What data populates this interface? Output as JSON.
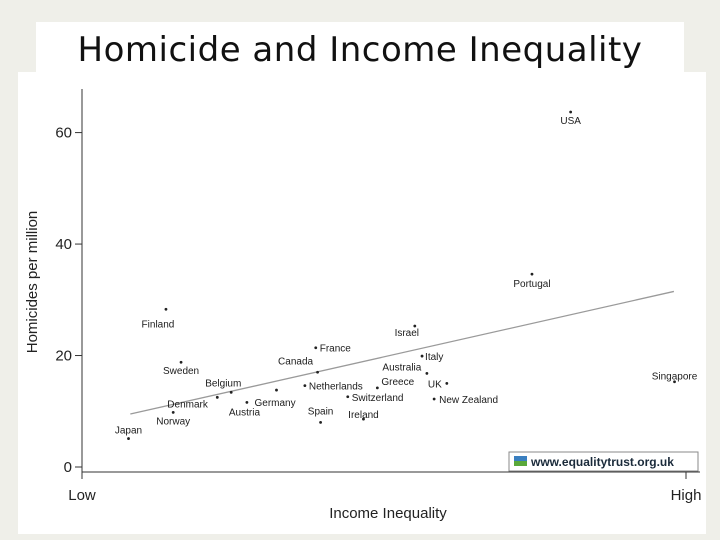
{
  "title": "Homicide and Income Inequality",
  "chart_data": {
    "type": "scatter",
    "xlabel": "Income Inequality",
    "ylabel": "Homicides per million",
    "x_tick_labels": [
      "Low",
      "High"
    ],
    "xlim": [
      0,
      100
    ],
    "ylim": [
      0,
      68
    ],
    "y_ticks": [
      0,
      20,
      40,
      60
    ],
    "grid": false,
    "points": [
      {
        "label": "USA",
        "x": 80.9,
        "y": 63.7
      },
      {
        "label": "Portugal",
        "x": 74.5,
        "y": 34.6
      },
      {
        "label": "Finland",
        "x": 13.9,
        "y": 28.3
      },
      {
        "label": "Israel",
        "x": 55.1,
        "y": 25.3
      },
      {
        "label": "France",
        "x": 38.7,
        "y": 21.4
      },
      {
        "label": "Italy",
        "x": 56.3,
        "y": 19.9
      },
      {
        "label": "Sweden",
        "x": 16.4,
        "y": 18.8
      },
      {
        "label": "Canada",
        "x": 39.0,
        "y": 17.0
      },
      {
        "label": "Australia",
        "x": 57.1,
        "y": 16.8
      },
      {
        "label": "Singapore",
        "x": 98.1,
        "y": 15.3
      },
      {
        "label": "UK",
        "x": 60.4,
        "y": 15.0
      },
      {
        "label": "Netherlands",
        "x": 36.9,
        "y": 14.6
      },
      {
        "label": "Greece",
        "x": 48.9,
        "y": 14.2
      },
      {
        "label": "Belgium",
        "x": 24.7,
        "y": 13.4
      },
      {
        "label": "Germany",
        "x": 32.2,
        "y": 13.8
      },
      {
        "label": "Switzerland",
        "x": 44.0,
        "y": 12.6
      },
      {
        "label": "New Zealand",
        "x": 58.3,
        "y": 12.2
      },
      {
        "label": "Denmark",
        "x": 22.4,
        "y": 12.5
      },
      {
        "label": "Austria",
        "x": 27.3,
        "y": 11.6
      },
      {
        "label": "Norway",
        "x": 15.1,
        "y": 9.8
      },
      {
        "label": "Ireland",
        "x": 46.6,
        "y": 8.6
      },
      {
        "label": "Spain",
        "x": 39.5,
        "y": 8.0
      },
      {
        "label": "Japan",
        "x": 7.7,
        "y": 5.1
      }
    ],
    "trend_line": {
      "x": [
        8,
        98
      ],
      "y": [
        9.5,
        31.5
      ]
    },
    "watermark": "www.equalitytrust.org.uk",
    "watermark_colors": [
      "#3a7fc0",
      "#5aa83a"
    ]
  }
}
